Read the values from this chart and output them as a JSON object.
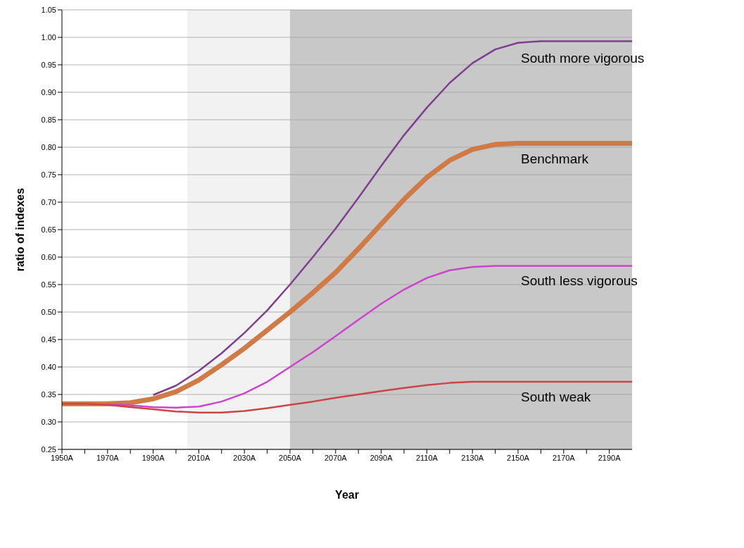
{
  "chart_data": {
    "type": "line",
    "xlabel": "Year",
    "ylabel": "ratio of indexes",
    "x": [
      1950,
      1960,
      1970,
      1980,
      1990,
      2000,
      2010,
      2020,
      2030,
      2040,
      2050,
      2060,
      2070,
      2080,
      2090,
      2100,
      2110,
      2120,
      2130,
      2140,
      2150,
      2160,
      2170,
      2180,
      2190,
      2200
    ],
    "series": [
      {
        "name": "South more vigorous",
        "color": "#7f3f8f",
        "values": [
          null,
          null,
          null,
          null,
          0.349,
          0.366,
          0.393,
          0.425,
          0.462,
          0.503,
          0.55,
          0.6,
          0.652,
          0.708,
          0.766,
          0.822,
          0.872,
          0.917,
          0.953,
          0.978,
          0.99,
          0.993,
          0.993,
          0.993,
          0.993,
          0.993
        ]
      },
      {
        "name": "Benchmark",
        "color": "#d07a45",
        "values": [
          0.333,
          0.333,
          0.333,
          0.335,
          0.342,
          0.355,
          0.376,
          0.404,
          0.434,
          0.467,
          0.5,
          0.535,
          0.572,
          0.615,
          0.66,
          0.705,
          0.745,
          0.776,
          0.796,
          0.805,
          0.807,
          0.807,
          0.807,
          0.807,
          0.807,
          0.807
        ]
      },
      {
        "name": "South less vigorous",
        "color": "#cc44cc",
        "values": [
          null,
          null,
          0.332,
          0.33,
          0.327,
          0.326,
          0.328,
          0.337,
          0.352,
          0.373,
          0.4,
          0.427,
          0.456,
          0.486,
          0.515,
          0.541,
          0.562,
          0.576,
          0.582,
          0.584,
          0.584,
          0.584,
          0.584,
          0.584,
          0.584,
          0.584
        ]
      },
      {
        "name": "South weak",
        "color": "#cc4444",
        "values": [
          0.333,
          0.333,
          0.331,
          0.327,
          0.323,
          0.319,
          0.317,
          0.317,
          0.32,
          0.325,
          0.331,
          0.337,
          0.344,
          0.35,
          0.356,
          0.362,
          0.367,
          0.371,
          0.373,
          0.373,
          0.373,
          0.373,
          0.373,
          0.373,
          0.373,
          0.373
        ]
      }
    ],
    "xlim": [
      1950,
      2200
    ],
    "xticks": [
      {
        "value": 1950,
        "label": "1950A"
      },
      {
        "value": 1960,
        "label": null
      },
      {
        "value": 1970,
        "label": "1970A"
      },
      {
        "value": 1980,
        "label": null
      },
      {
        "value": 1990,
        "label": "1990A"
      },
      {
        "value": 2000,
        "label": null
      },
      {
        "value": 2010,
        "label": "2010A"
      },
      {
        "value": 2020,
        "label": null
      },
      {
        "value": 2030,
        "label": "2030A"
      },
      {
        "value": 2040,
        "label": null
      },
      {
        "value": 2050,
        "label": "2050A"
      },
      {
        "value": 2060,
        "label": null
      },
      {
        "value": 2070,
        "label": "2070A"
      },
      {
        "value": 2080,
        "label": null
      },
      {
        "value": 2090,
        "label": "2090A"
      },
      {
        "value": 2100,
        "label": null
      },
      {
        "value": 2110,
        "label": "2110A"
      },
      {
        "value": 2120,
        "label": null
      },
      {
        "value": 2130,
        "label": "2130A"
      },
      {
        "value": 2140,
        "label": null
      },
      {
        "value": 2150,
        "label": "2150A"
      },
      {
        "value": 2160,
        "label": null
      },
      {
        "value": 2170,
        "label": "2170A"
      },
      {
        "value": 2180,
        "label": null
      },
      {
        "value": 2190,
        "label": "2190A"
      }
    ],
    "ylim": [
      0.25,
      1.05
    ],
    "yticks": [
      {
        "value": 0.25,
        "label": "0.25"
      },
      {
        "value": 0.3,
        "label": "0.30"
      },
      {
        "value": 0.35,
        "label": "0.35"
      },
      {
        "value": 0.4,
        "label": "0.40"
      },
      {
        "value": 0.45,
        "label": "0.45"
      },
      {
        "value": 0.5,
        "label": "0.50"
      },
      {
        "value": 0.55,
        "label": "0.55"
      },
      {
        "value": 0.6,
        "label": "0.60"
      },
      {
        "value": 0.65,
        "label": "0.65"
      },
      {
        "value": 0.7,
        "label": "0.70"
      },
      {
        "value": 0.75,
        "label": "0.75"
      },
      {
        "value": 0.8,
        "label": "0.80"
      },
      {
        "value": 0.85,
        "label": "0.85"
      },
      {
        "value": 0.9,
        "label": "0.90"
      },
      {
        "value": 0.95,
        "label": "0.95"
      },
      {
        "value": 1.0,
        "label": "1.00"
      },
      {
        "value": 1.05,
        "label": "1.05"
      }
    ],
    "bands": [
      {
        "axis": "x",
        "from": 2005,
        "to": 2050,
        "color": "#f2f2f2"
      },
      {
        "axis": "x",
        "from": 2050,
        "to": 2200,
        "color": "#c8c8c8"
      }
    ],
    "grid": "y",
    "legend": false,
    "marker": "none",
    "line_style": "solid"
  }
}
